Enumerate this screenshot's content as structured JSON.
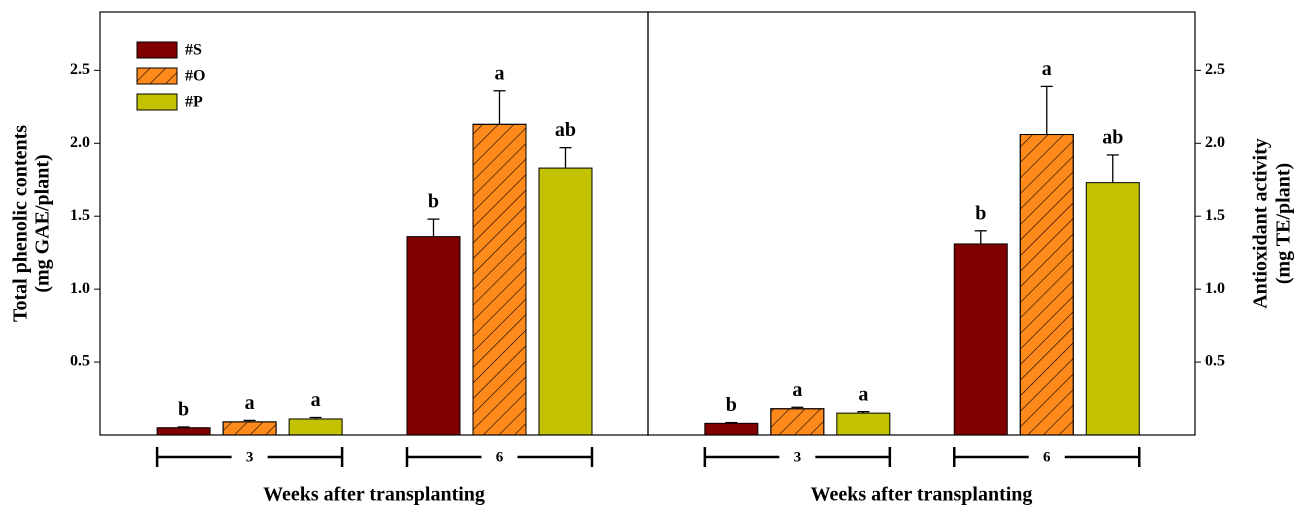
{
  "chart_data": [
    {
      "type": "bar",
      "ylabel": [
        "Total phenolic contents",
        "(mg GAE/plant)"
      ],
      "xlabel": "Weeks after transplanting",
      "categories": [
        "3",
        "6"
      ],
      "ylim": [
        0,
        2.9
      ],
      "yticks": [
        0.5,
        {
          "value": 1,
          "label": "1.0"
        },
        1.5,
        {
          "value": 2,
          "label": "2.0"
        },
        2.5
      ],
      "axis_side": "left",
      "legend": true,
      "legend_corner": "upper left",
      "series": [
        {
          "name": "#S",
          "color": "#800000",
          "values": [
            0.05,
            1.36
          ],
          "errors": [
            0.005,
            0.12
          ],
          "letters": [
            "b",
            "b"
          ]
        },
        {
          "name": "#O",
          "color": "#ff8a1c",
          "hatch": true,
          "values": [
            0.09,
            2.13
          ],
          "errors": [
            0.01,
            0.23
          ],
          "letters": [
            "a",
            "a"
          ]
        },
        {
          "name": "#P",
          "color": "#c2c200",
          "values": [
            0.11,
            1.83
          ],
          "errors": [
            0.01,
            0.14
          ],
          "letters": [
            "a",
            "ab"
          ]
        }
      ]
    },
    {
      "type": "bar",
      "ylabel": [
        "Antioxidant activity",
        "(mg TE/plant)"
      ],
      "xlabel": "Weeks after transplanting",
      "categories": [
        "3",
        "6"
      ],
      "ylim": [
        0,
        2.9
      ],
      "yticks": [
        0.5,
        {
          "value": 1,
          "label": "1.0"
        },
        1.5,
        {
          "value": 2,
          "label": "2.0"
        },
        2.5
      ],
      "axis_side": "right",
      "legend": false,
      "series": [
        {
          "color": "#800000",
          "values": [
            0.08,
            1.31
          ],
          "errors": [
            0.005,
            0.09
          ],
          "letters": [
            "b",
            "b"
          ]
        },
        {
          "color": "#ff8a1c",
          "hatch": true,
          "values": [
            0.18,
            2.06
          ],
          "errors": [
            0.01,
            0.33
          ],
          "letters": [
            "a",
            "a"
          ]
        },
        {
          "color": "#c2c200",
          "values": [
            0.15,
            1.73
          ],
          "errors": [
            0.01,
            0.19
          ],
          "letters": [
            "a",
            "ab"
          ]
        }
      ]
    }
  ]
}
